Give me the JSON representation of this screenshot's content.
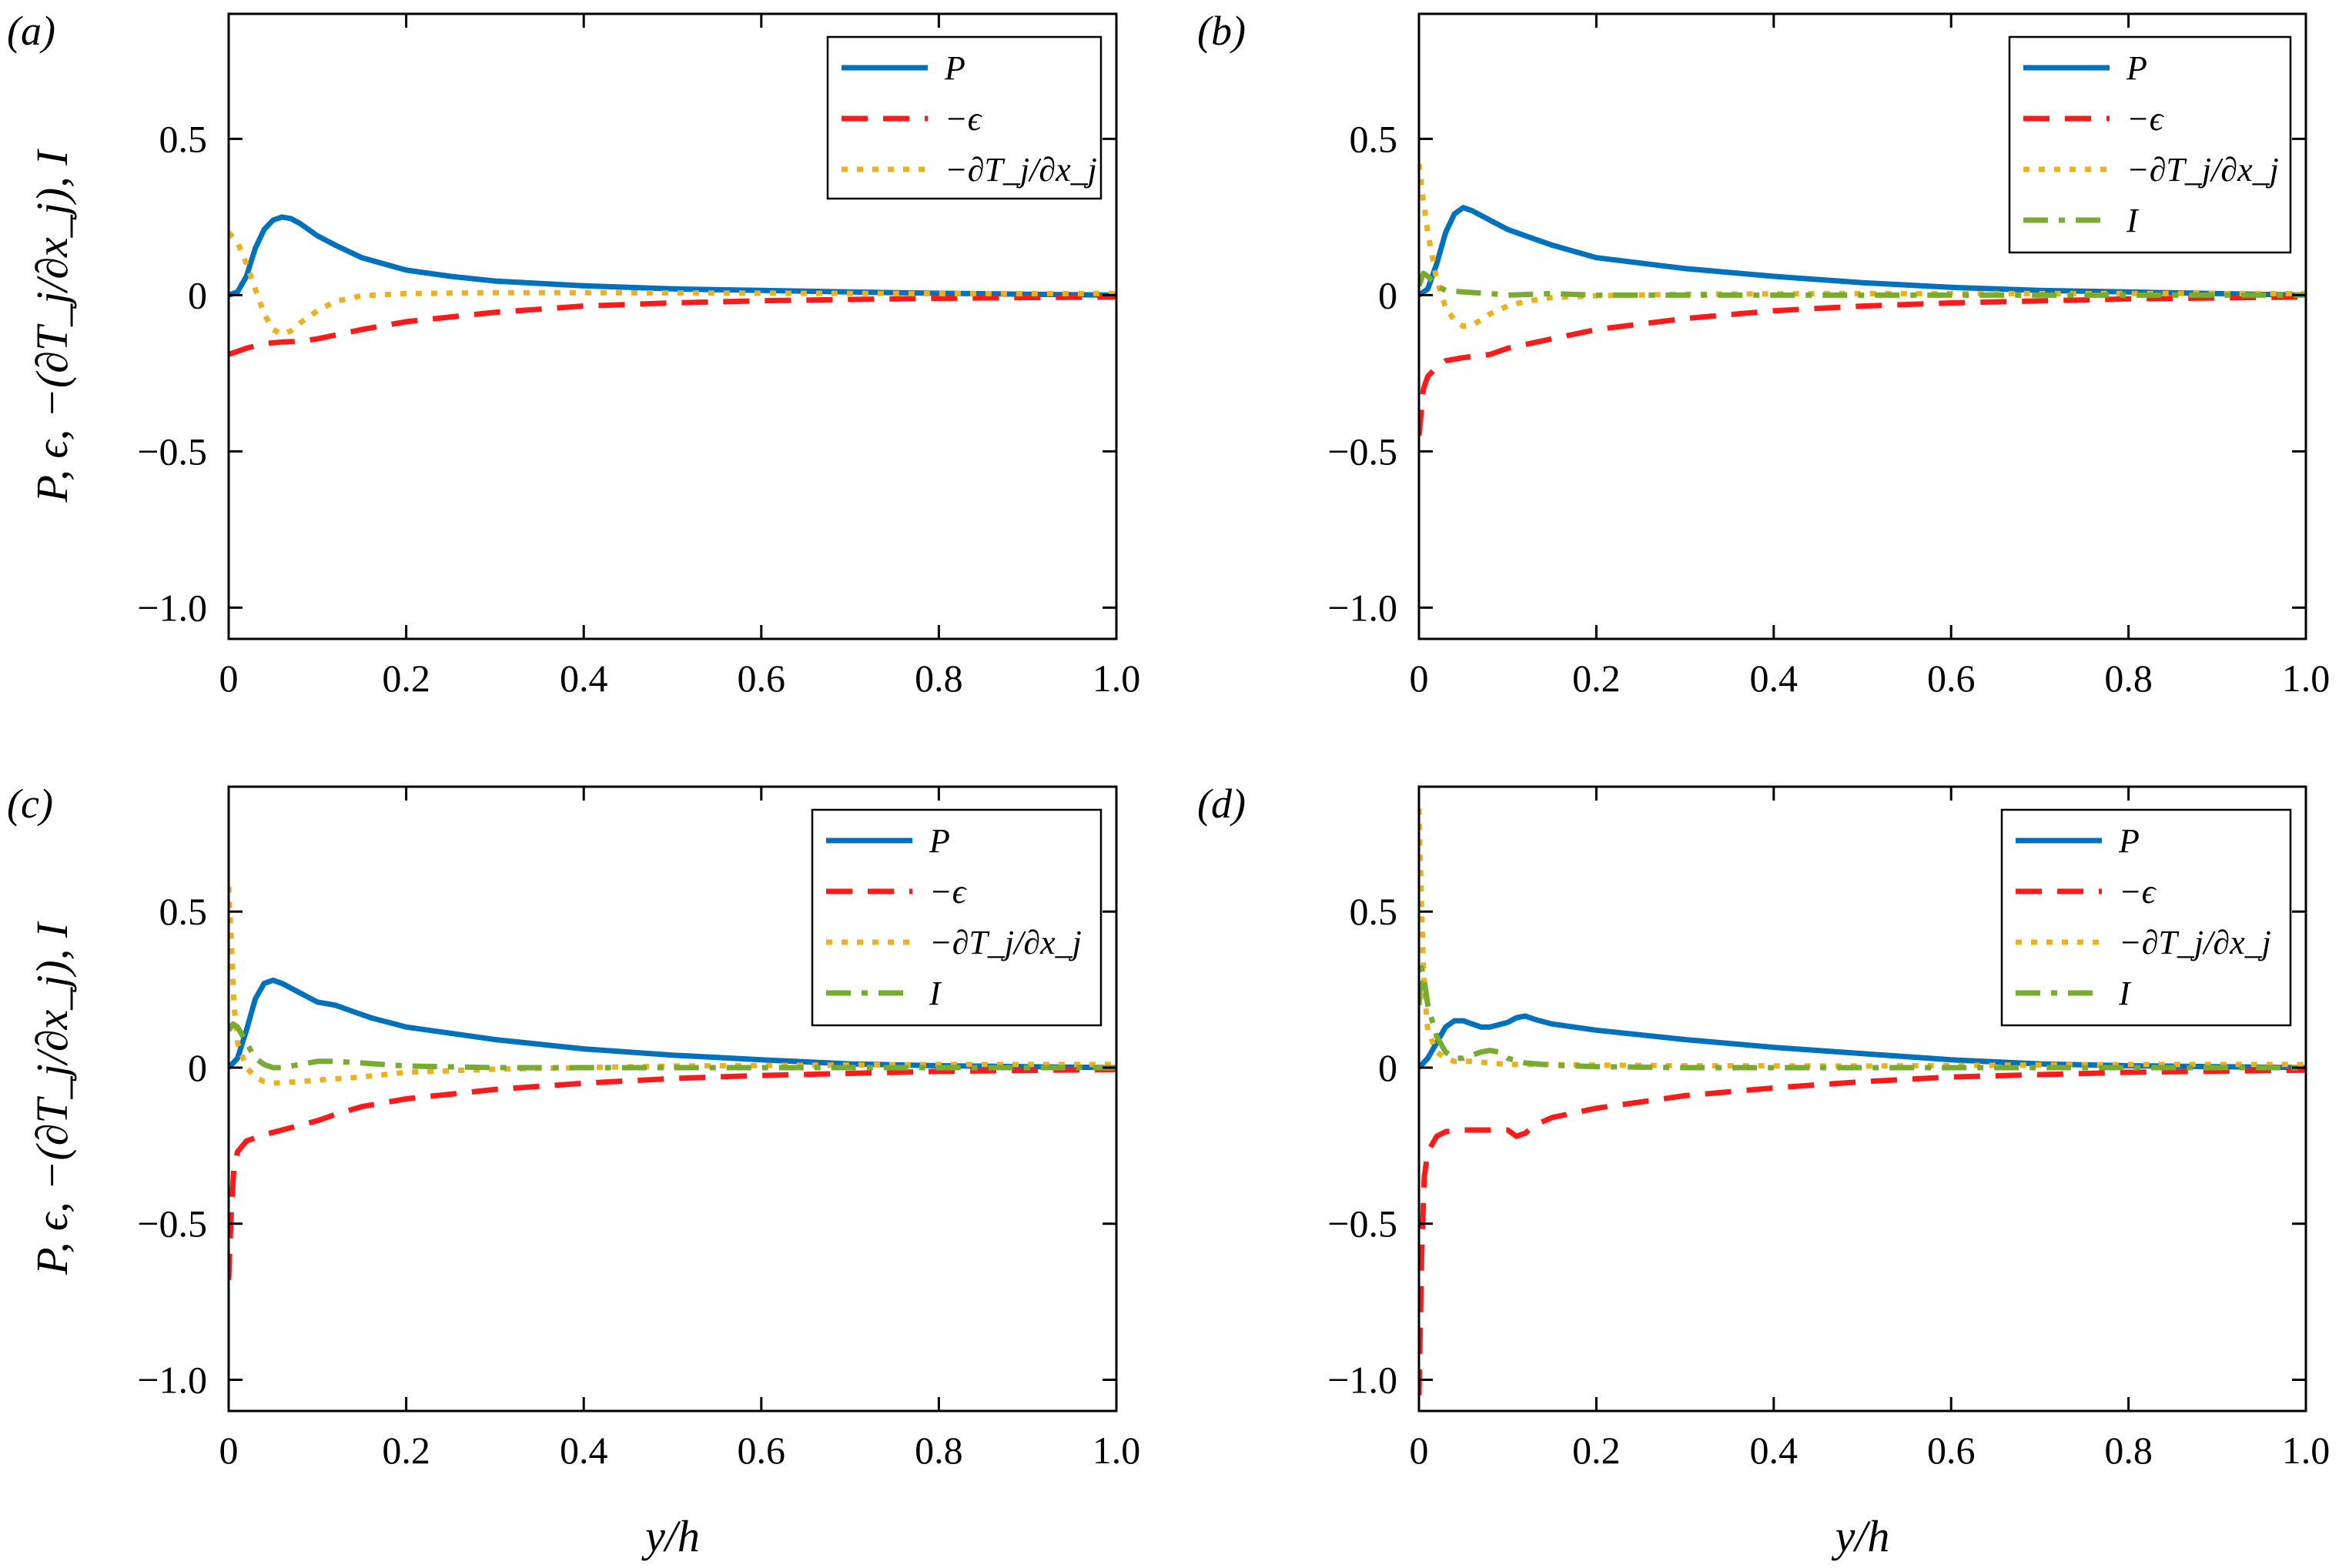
{
  "figure": {
    "ylabel_common": "P, ϵ, −(∂T_j/∂x_j), I",
    "xlabel_common": "y/h"
  },
  "colors": {
    "P": "#0072BD",
    "neg_eps": "#FF1A1A",
    "transport": "#EDB120",
    "I": "#77AC30"
  },
  "chart_data": [
    {
      "type": "line",
      "panel_label": "(a)",
      "xlabel": "",
      "ylabel": "P, ϵ, −(∂T_j/∂x_j), I",
      "xlim": [
        0,
        1
      ],
      "ylim": [
        -1.1,
        0.9
      ],
      "xticks": [
        0,
        0.2,
        0.4,
        0.6,
        0.8,
        1.0
      ],
      "xtick_labels": [
        "0",
        "0.2",
        "0.4",
        "0.6",
        "0.8",
        "1.0"
      ],
      "yticks": [
        -1.0,
        -0.5,
        0,
        0.5
      ],
      "ytick_labels": [
        "−1.0",
        "−0.5",
        "0",
        "0.5"
      ],
      "legend_position": "top-right",
      "series": [
        {
          "key": "P",
          "name": "P",
          "style": "solid",
          "x": [
            0,
            0.01,
            0.02,
            0.03,
            0.04,
            0.05,
            0.06,
            0.07,
            0.08,
            0.1,
            0.12,
            0.15,
            0.2,
            0.25,
            0.3,
            0.4,
            0.5,
            0.6,
            0.7,
            0.8,
            0.9,
            1.0
          ],
          "y": [
            0,
            0.01,
            0.06,
            0.15,
            0.21,
            0.24,
            0.25,
            0.245,
            0.23,
            0.19,
            0.16,
            0.12,
            0.08,
            0.06,
            0.045,
            0.03,
            0.02,
            0.015,
            0.01,
            0.006,
            0.003,
            0.0
          ]
        },
        {
          "key": "neg_eps",
          "name": "−ϵ",
          "style": "dashed",
          "x": [
            0,
            0.02,
            0.04,
            0.06,
            0.08,
            0.1,
            0.15,
            0.2,
            0.3,
            0.4,
            0.5,
            0.6,
            0.8,
            1.0
          ],
          "y": [
            -0.19,
            -0.17,
            -0.155,
            -0.15,
            -0.148,
            -0.14,
            -0.11,
            -0.085,
            -0.055,
            -0.035,
            -0.025,
            -0.018,
            -0.01,
            -0.006
          ]
        },
        {
          "key": "transport",
          "name": "−∂T_j/∂x_j",
          "style": "dotted",
          "x": [
            0,
            0.01,
            0.02,
            0.03,
            0.04,
            0.05,
            0.06,
            0.07,
            0.08,
            0.1,
            0.12,
            0.15,
            0.2,
            0.3,
            0.4,
            0.6,
            0.8,
            1.0
          ],
          "y": [
            0.2,
            0.17,
            0.1,
            0.02,
            -0.06,
            -0.11,
            -0.125,
            -0.115,
            -0.09,
            -0.05,
            -0.02,
            -0.002,
            0.005,
            0.008,
            0.008,
            0.006,
            0.005,
            0.005
          ]
        }
      ]
    },
    {
      "type": "line",
      "panel_label": "(b)",
      "xlabel": "",
      "ylabel": "",
      "xlim": [
        0,
        1
      ],
      "ylim": [
        -1.1,
        0.9
      ],
      "xticks": [
        0,
        0.2,
        0.4,
        0.6,
        0.8,
        1.0
      ],
      "xtick_labels": [
        "0",
        "0.2",
        "0.4",
        "0.6",
        "0.8",
        "1.0"
      ],
      "yticks": [
        -1.0,
        -0.5,
        0,
        0.5
      ],
      "ytick_labels": [
        "−1.0",
        "−0.5",
        "0",
        "0.5"
      ],
      "legend_position": "top-right",
      "series": [
        {
          "key": "P",
          "name": "P",
          "style": "solid",
          "x": [
            0,
            0.01,
            0.02,
            0.03,
            0.04,
            0.05,
            0.06,
            0.08,
            0.1,
            0.12,
            0.15,
            0.2,
            0.3,
            0.4,
            0.5,
            0.6,
            0.7,
            0.8,
            0.9,
            1.0
          ],
          "y": [
            0,
            0.02,
            0.1,
            0.2,
            0.26,
            0.28,
            0.27,
            0.24,
            0.21,
            0.19,
            0.16,
            0.12,
            0.085,
            0.06,
            0.04,
            0.025,
            0.015,
            0.01,
            0.005,
            0.0
          ]
        },
        {
          "key": "neg_eps",
          "name": "−ϵ",
          "style": "dashed",
          "x": [
            0,
            0.005,
            0.01,
            0.02,
            0.03,
            0.05,
            0.08,
            0.1,
            0.15,
            0.2,
            0.3,
            0.4,
            0.5,
            0.6,
            0.8,
            1.0
          ],
          "y": [
            -0.45,
            -0.3,
            -0.26,
            -0.23,
            -0.21,
            -0.2,
            -0.19,
            -0.17,
            -0.14,
            -0.11,
            -0.075,
            -0.05,
            -0.035,
            -0.025,
            -0.012,
            -0.006
          ]
        },
        {
          "key": "transport",
          "name": "−∂T_j/∂x_j",
          "style": "dotted",
          "x": [
            0,
            0.005,
            0.01,
            0.02,
            0.03,
            0.04,
            0.05,
            0.06,
            0.07,
            0.08,
            0.1,
            0.12,
            0.15,
            0.2,
            0.3,
            0.5,
            0.8,
            1.0
          ],
          "y": [
            0.42,
            0.3,
            0.2,
            0.05,
            -0.04,
            -0.08,
            -0.1,
            -0.095,
            -0.08,
            -0.06,
            -0.035,
            -0.02,
            -0.008,
            -0.002,
            0.003,
            0.005,
            0.005,
            0.005
          ]
        },
        {
          "key": "I",
          "name": "I",
          "style": "dashdot",
          "x": [
            0,
            0.005,
            0.01,
            0.02,
            0.03,
            0.05,
            0.08,
            0.1,
            0.15,
            0.2,
            0.3,
            0.5,
            0.8,
            1.0
          ],
          "y": [
            0.03,
            0.07,
            0.06,
            0.03,
            0.015,
            0.01,
            0.005,
            0.0,
            0.005,
            0.0,
            0.0,
            0.0,
            0.0,
            0.0
          ]
        }
      ]
    },
    {
      "type": "line",
      "panel_label": "(c)",
      "xlabel": "y/h",
      "ylabel": "P, ϵ, −(∂T_j/∂x_j), I",
      "xlim": [
        0,
        1
      ],
      "ylim": [
        -1.1,
        0.9
      ],
      "xticks": [
        0,
        0.2,
        0.4,
        0.6,
        0.8,
        1.0
      ],
      "xtick_labels": [
        "0",
        "0.2",
        "0.4",
        "0.6",
        "0.8",
        "1.0"
      ],
      "yticks": [
        -1.0,
        -0.5,
        0,
        0.5
      ],
      "ytick_labels": [
        "−1.0",
        "−0.5",
        "0",
        "0.5"
      ],
      "legend_position": "top-right",
      "series": [
        {
          "key": "P",
          "name": "P",
          "style": "solid",
          "x": [
            0,
            0.01,
            0.02,
            0.03,
            0.04,
            0.05,
            0.06,
            0.08,
            0.1,
            0.12,
            0.14,
            0.16,
            0.2,
            0.3,
            0.4,
            0.5,
            0.6,
            0.7,
            0.8,
            0.9,
            1.0
          ],
          "y": [
            0,
            0.03,
            0.12,
            0.22,
            0.27,
            0.28,
            0.27,
            0.24,
            0.21,
            0.2,
            0.18,
            0.16,
            0.13,
            0.09,
            0.06,
            0.04,
            0.025,
            0.012,
            0.006,
            0.003,
            0.0
          ]
        },
        {
          "key": "neg_eps",
          "name": "−ϵ",
          "style": "dashed",
          "x": [
            0,
            0.003,
            0.006,
            0.01,
            0.02,
            0.04,
            0.06,
            0.08,
            0.1,
            0.12,
            0.15,
            0.2,
            0.3,
            0.4,
            0.5,
            0.6,
            0.8,
            1.0
          ],
          "y": [
            -0.68,
            -0.45,
            -0.32,
            -0.27,
            -0.235,
            -0.215,
            -0.2,
            -0.185,
            -0.17,
            -0.15,
            -0.125,
            -0.1,
            -0.07,
            -0.05,
            -0.035,
            -0.025,
            -0.012,
            -0.006
          ]
        },
        {
          "key": "transport",
          "name": "−∂T_j/∂x_j",
          "style": "dotted",
          "x": [
            0,
            0.003,
            0.006,
            0.01,
            0.02,
            0.03,
            0.04,
            0.05,
            0.06,
            0.08,
            0.1,
            0.15,
            0.2,
            0.3,
            0.5,
            0.8,
            1.0
          ],
          "y": [
            0.58,
            0.4,
            0.2,
            0.08,
            0.0,
            -0.03,
            -0.045,
            -0.05,
            -0.048,
            -0.045,
            -0.04,
            -0.03,
            -0.015,
            -0.005,
            0.005,
            0.01,
            0.01
          ]
        },
        {
          "key": "I",
          "name": "I",
          "style": "dashdot",
          "x": [
            0,
            0.005,
            0.01,
            0.02,
            0.03,
            0.04,
            0.05,
            0.06,
            0.08,
            0.1,
            0.12,
            0.15,
            0.2,
            0.3,
            0.5,
            0.8,
            1.0
          ],
          "y": [
            0.12,
            0.14,
            0.13,
            0.08,
            0.03,
            0.01,
            0.0,
            0.0,
            0.01,
            0.02,
            0.02,
            0.015,
            0.005,
            0.0,
            0.0,
            0.0,
            0.0
          ]
        }
      ]
    },
    {
      "type": "line",
      "panel_label": "(d)",
      "xlabel": "y/h",
      "ylabel": "",
      "xlim": [
        0,
        1
      ],
      "ylim": [
        -1.1,
        0.9
      ],
      "xticks": [
        0,
        0.2,
        0.4,
        0.6,
        0.8,
        1.0
      ],
      "xtick_labels": [
        "0",
        "0.2",
        "0.4",
        "0.6",
        "0.8",
        "1.0"
      ],
      "yticks": [
        -1.0,
        -0.5,
        0,
        0.5
      ],
      "ytick_labels": [
        "−1.0",
        "−0.5",
        "0",
        "0.5"
      ],
      "legend_position": "top-right",
      "series": [
        {
          "key": "P",
          "name": "P",
          "style": "solid",
          "x": [
            0,
            0.01,
            0.02,
            0.03,
            0.04,
            0.05,
            0.06,
            0.07,
            0.08,
            0.1,
            0.11,
            0.12,
            0.13,
            0.15,
            0.2,
            0.3,
            0.4,
            0.5,
            0.6,
            0.7,
            0.8,
            0.9,
            1.0
          ],
          "y": [
            0,
            0.03,
            0.08,
            0.13,
            0.15,
            0.15,
            0.14,
            0.13,
            0.13,
            0.145,
            0.16,
            0.165,
            0.155,
            0.14,
            0.12,
            0.09,
            0.065,
            0.045,
            0.025,
            0.012,
            0.006,
            0.003,
            0.0
          ]
        },
        {
          "key": "neg_eps",
          "name": "−ϵ",
          "style": "dashed",
          "x": [
            0,
            0.003,
            0.006,
            0.01,
            0.02,
            0.03,
            0.05,
            0.08,
            0.1,
            0.11,
            0.12,
            0.13,
            0.15,
            0.2,
            0.3,
            0.4,
            0.5,
            0.6,
            0.8,
            1.0
          ],
          "y": [
            -1.05,
            -0.6,
            -0.35,
            -0.27,
            -0.22,
            -0.205,
            -0.2,
            -0.2,
            -0.2,
            -0.22,
            -0.21,
            -0.185,
            -0.16,
            -0.13,
            -0.09,
            -0.065,
            -0.045,
            -0.03,
            -0.015,
            -0.008
          ]
        },
        {
          "key": "transport",
          "name": "−∂T_j/∂x_j",
          "style": "dotted",
          "x": [
            0,
            0.003,
            0.006,
            0.01,
            0.02,
            0.03,
            0.04,
            0.06,
            0.08,
            0.1,
            0.15,
            0.2,
            0.3,
            0.5,
            0.8,
            1.0
          ],
          "y": [
            0.83,
            0.5,
            0.25,
            0.12,
            0.05,
            0.03,
            0.02,
            0.02,
            0.015,
            0.01,
            0.01,
            0.008,
            0.006,
            0.005,
            0.01,
            0.01
          ]
        },
        {
          "key": "I",
          "name": "I",
          "style": "dashdot",
          "x": [
            0,
            0.003,
            0.006,
            0.01,
            0.02,
            0.03,
            0.04,
            0.05,
            0.06,
            0.07,
            0.08,
            0.09,
            0.1,
            0.12,
            0.15,
            0.2,
            0.3,
            0.5,
            0.8,
            1.0
          ],
          "y": [
            0.2,
            0.32,
            0.28,
            0.2,
            0.1,
            0.05,
            0.03,
            0.03,
            0.04,
            0.05,
            0.055,
            0.05,
            0.03,
            0.015,
            0.008,
            0.003,
            0.0,
            0.0,
            0.0,
            0.0
          ]
        }
      ]
    }
  ]
}
